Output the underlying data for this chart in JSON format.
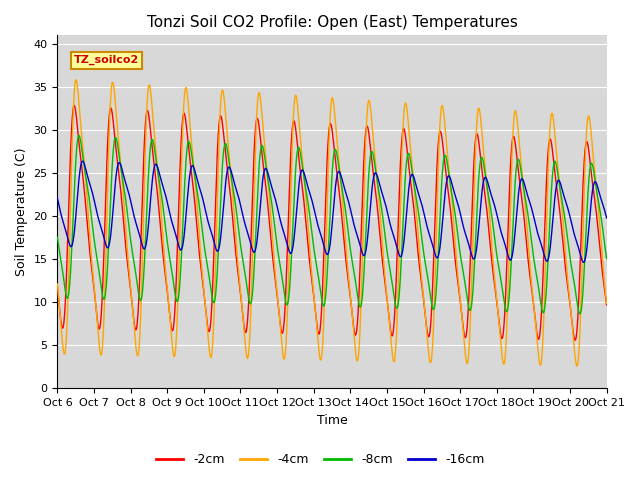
{
  "title": "Tonzi Soil CO2 Profile: Open (East) Temperatures",
  "xlabel": "Time",
  "ylabel": "Soil Temperature (C)",
  "ylim": [
    0,
    41
  ],
  "yticks": [
    0,
    5,
    10,
    15,
    20,
    25,
    30,
    35,
    40
  ],
  "xlim": [
    0,
    15
  ],
  "xtick_labels": [
    "Oct 6",
    "Oct 7",
    "Oct 8",
    "Oct 9",
    "Oct 10",
    "Oct 11",
    "Oct 12",
    "Oct 13",
    "Oct 14",
    "Oct 15",
    "Oct 16",
    "Oct 17",
    "Oct 18",
    "Oct 19",
    "Oct 20",
    "Oct 21"
  ],
  "series_labels": [
    "-2cm",
    "-4cm",
    "-8cm",
    "-16cm"
  ],
  "series_colors": [
    "#ff0000",
    "#ffa500",
    "#00bb00",
    "#0000cc"
  ],
  "background_color": "#e8e8e8",
  "plot_bg_color": "#d8d8d8",
  "title_fontsize": 11,
  "axis_fontsize": 9,
  "tick_fontsize": 8,
  "legend_label": "TZ_soilco2",
  "legend_box_color": "#ffff99",
  "legend_box_edge": "#cc8800"
}
